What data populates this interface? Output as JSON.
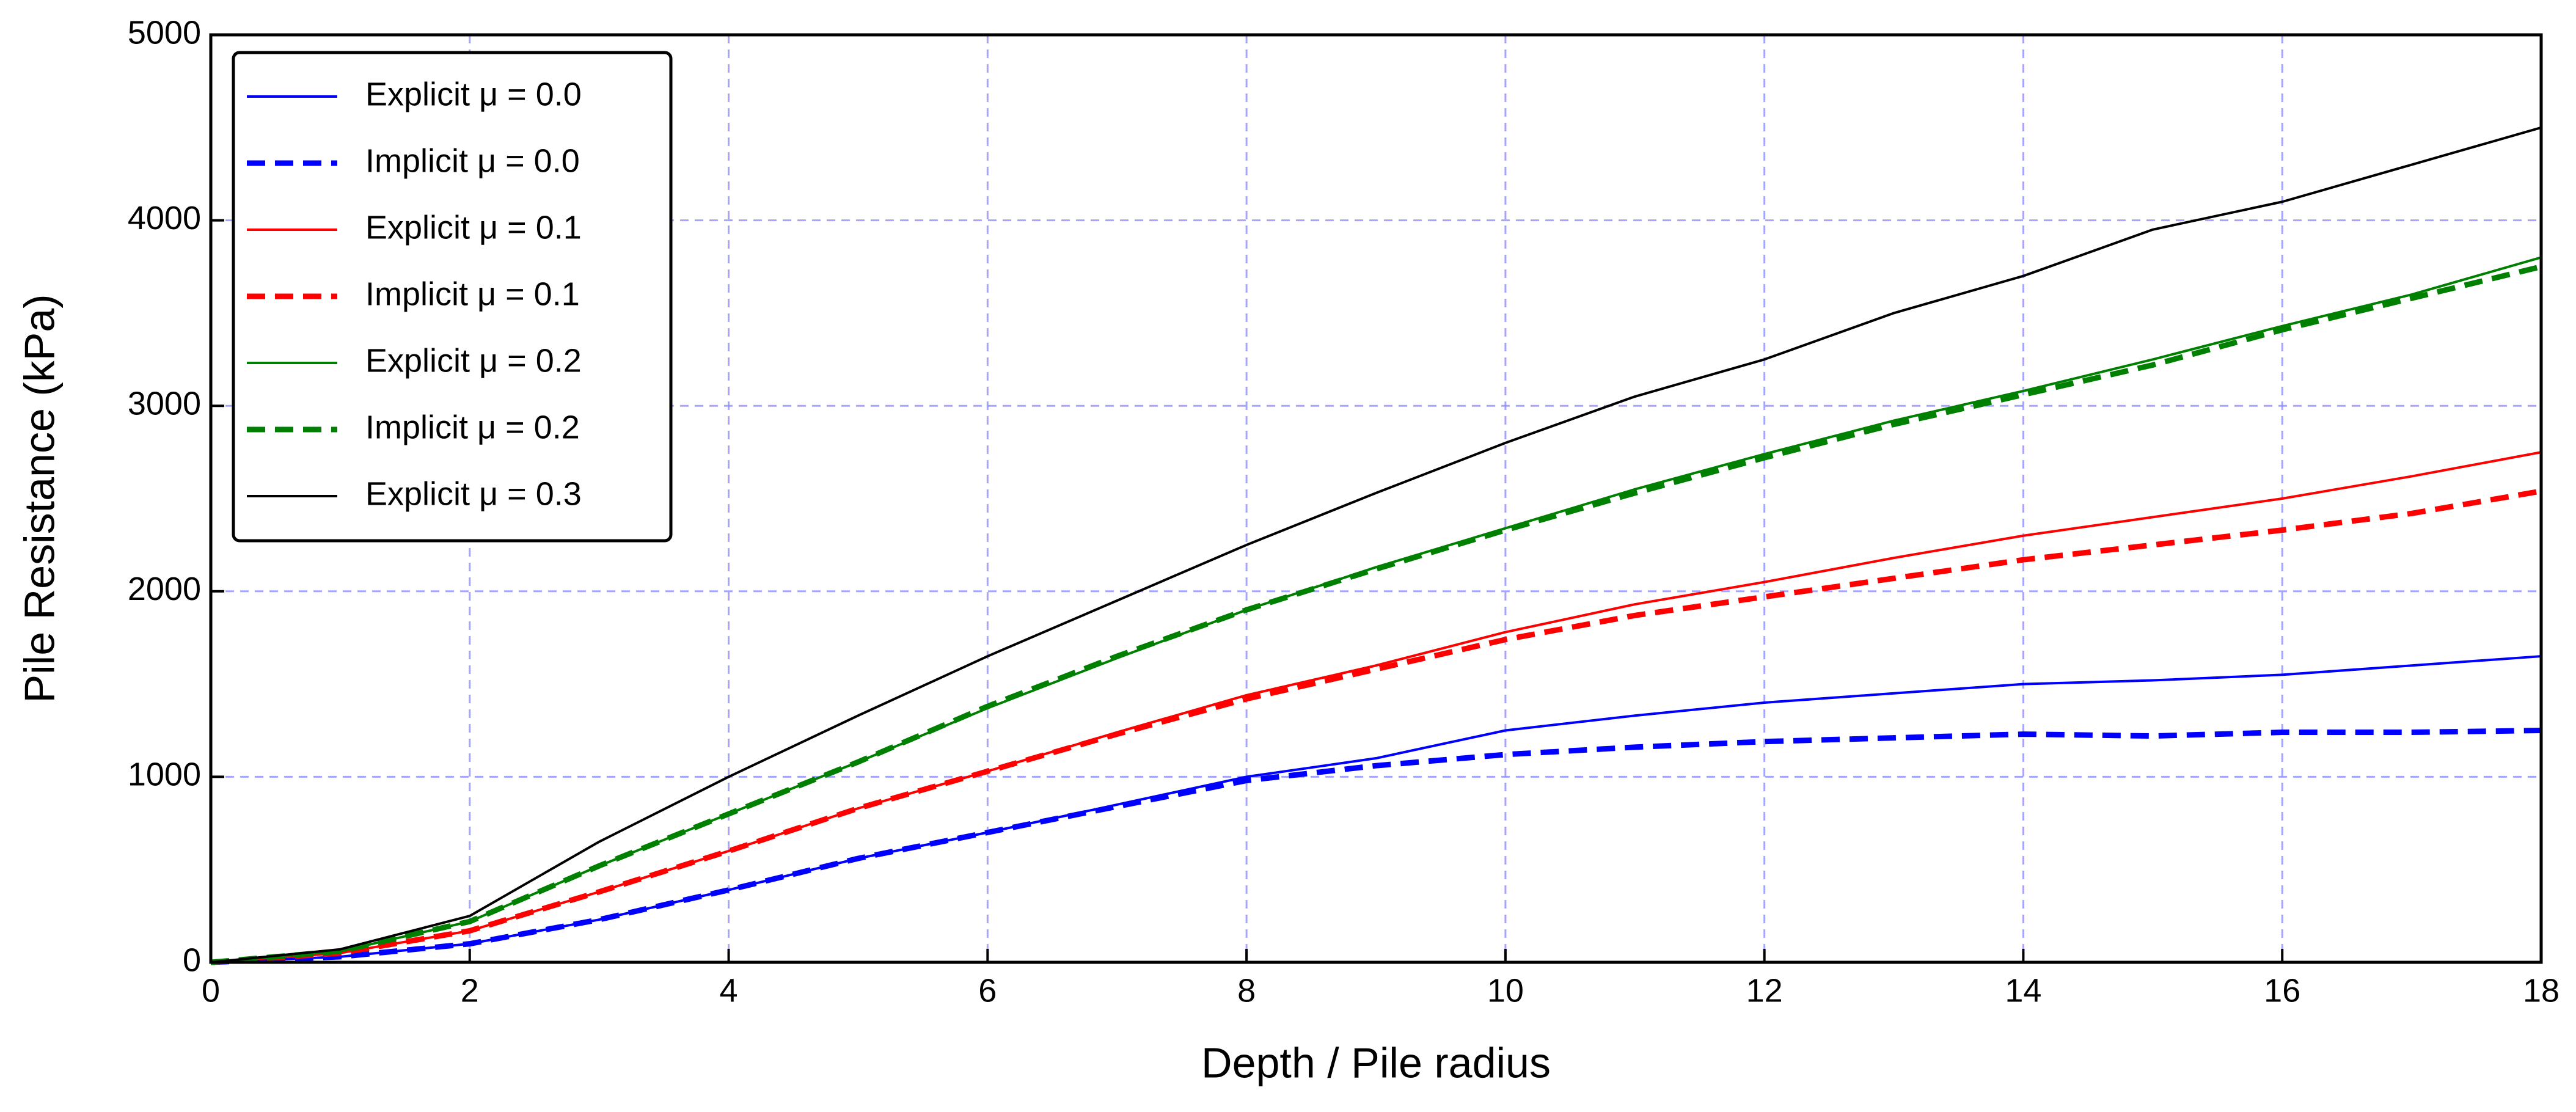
{
  "chart_data": {
    "type": "line",
    "xlabel": "Depth / Pile radius",
    "ylabel": "Pile Resistance (kPa)",
    "x": [
      0,
      1,
      2,
      3,
      4,
      5,
      6,
      7,
      8,
      9,
      10,
      11,
      12,
      13,
      14,
      15,
      16,
      17,
      18
    ],
    "xlim": [
      0,
      18
    ],
    "ylim": [
      0,
      5000
    ],
    "xticks": [
      0,
      2,
      4,
      6,
      8,
      10,
      12,
      14,
      16,
      18
    ],
    "yticks": [
      0,
      1000,
      2000,
      3000,
      4000,
      5000
    ],
    "grid": true,
    "legend": "upper-left",
    "series": [
      {
        "name": "Explicit μ = 0.0",
        "color": "#0000ff",
        "linestyle": "solid",
        "values": [
          0,
          30,
          100,
          230,
          390,
          560,
          700,
          850,
          1000,
          1100,
          1250,
          1330,
          1400,
          1450,
          1500,
          1520,
          1550,
          1600,
          1650
        ]
      },
      {
        "name": "Implicit μ = 0.0",
        "color": "#0000ff",
        "linestyle": "dashed",
        "values": [
          0,
          30,
          100,
          230,
          390,
          560,
          700,
          840,
          980,
          1060,
          1120,
          1160,
          1190,
          1210,
          1230,
          1220,
          1240,
          1240,
          1250
        ]
      },
      {
        "name": "Explicit μ = 0.1",
        "color": "#ff0000",
        "linestyle": "solid",
        "values": [
          0,
          50,
          170,
          380,
          600,
          830,
          1030,
          1240,
          1440,
          1600,
          1780,
          1930,
          2050,
          2180,
          2300,
          2400,
          2500,
          2620,
          2750
        ]
      },
      {
        "name": "Implicit μ = 0.1",
        "color": "#ff0000",
        "linestyle": "dashed",
        "values": [
          0,
          50,
          170,
          380,
          600,
          830,
          1030,
          1230,
          1420,
          1580,
          1740,
          1870,
          1970,
          2070,
          2170,
          2250,
          2330,
          2420,
          2540
        ]
      },
      {
        "name": "Explicit μ = 0.2",
        "color": "#008000",
        "linestyle": "solid",
        "values": [
          0,
          60,
          220,
          520,
          800,
          1080,
          1370,
          1640,
          1900,
          2130,
          2340,
          2550,
          2740,
          2920,
          3080,
          3250,
          3430,
          3600,
          3800
        ]
      },
      {
        "name": "Implicit μ = 0.2",
        "color": "#008000",
        "linestyle": "dashed",
        "values": [
          0,
          60,
          220,
          520,
          800,
          1080,
          1380,
          1650,
          1900,
          2120,
          2330,
          2530,
          2720,
          2900,
          3060,
          3220,
          3410,
          3580,
          3750
        ]
      },
      {
        "name": "Explicit μ = 0.3",
        "color": "#000000",
        "linestyle": "solid",
        "values": [
          0,
          70,
          250,
          650,
          1000,
          1330,
          1650,
          1950,
          2250,
          2530,
          2800,
          3050,
          3250,
          3500,
          3700,
          3950,
          4100,
          4300,
          4500
        ]
      }
    ]
  }
}
